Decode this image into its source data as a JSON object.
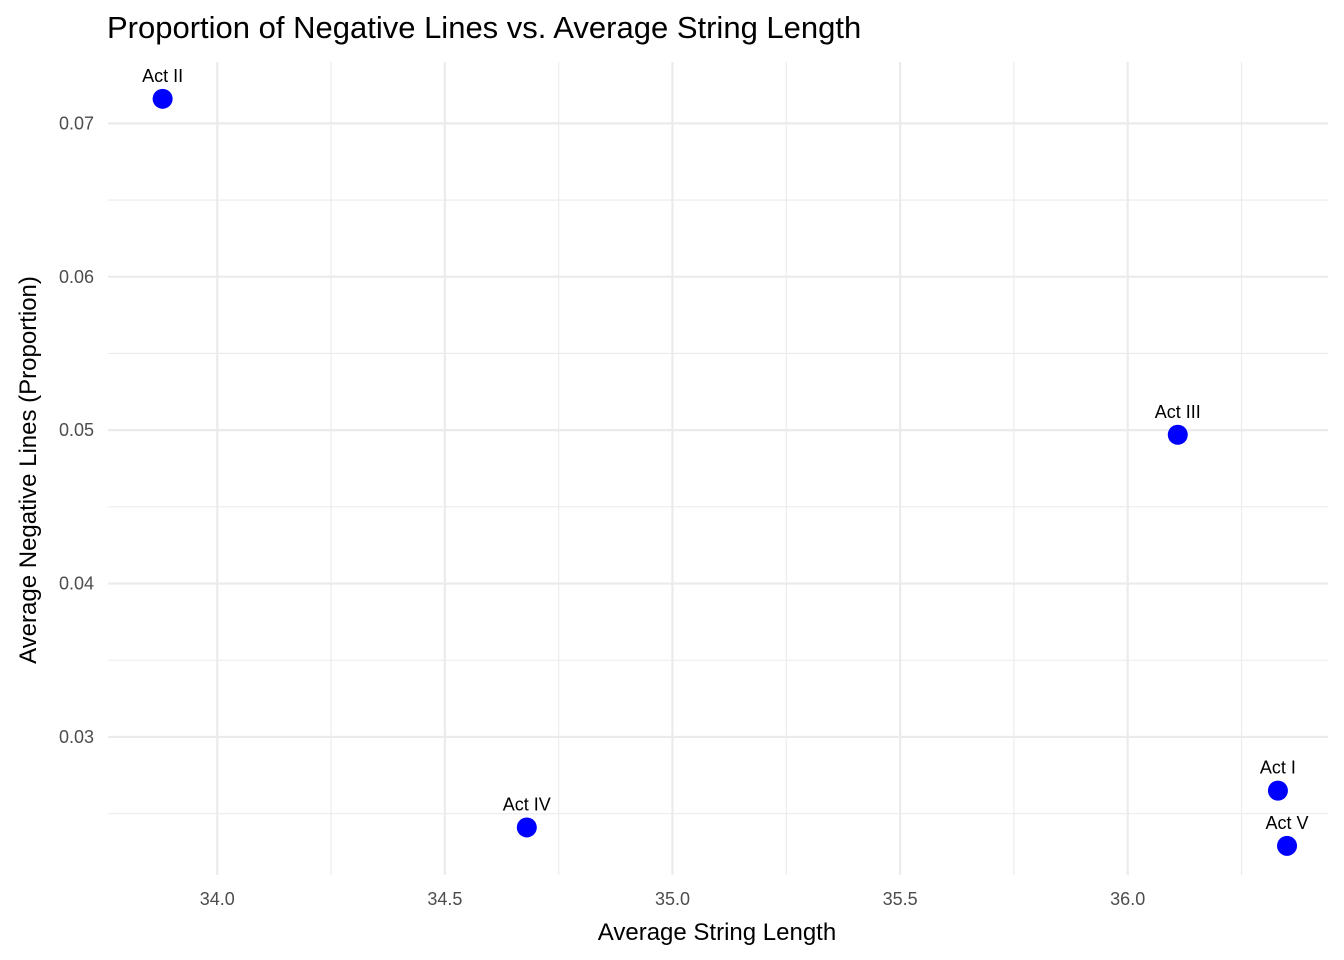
{
  "chart_data": {
    "type": "scatter",
    "title": "Proportion of Negative Lines vs. Average String Length",
    "xlabel": "Average String Length",
    "ylabel": "Average Negative Lines (Proportion)",
    "xlim": [
      33.76,
      36.44
    ],
    "ylim": [
      0.021,
      0.074
    ],
    "x_ticks": [
      34.0,
      34.5,
      35.0,
      35.5,
      36.0
    ],
    "x_tick_labels": [
      "34.0",
      "34.5",
      "35.0",
      "35.5",
      "36.0"
    ],
    "x_minor_ticks": [
      34.25,
      34.75,
      35.25,
      35.75,
      36.25
    ],
    "y_ticks": [
      0.03,
      0.04,
      0.05,
      0.06,
      0.07
    ],
    "y_tick_labels": [
      "0.03",
      "0.04",
      "0.05",
      "0.06",
      "0.07"
    ],
    "y_minor_ticks": [
      0.025,
      0.035,
      0.045,
      0.055,
      0.065
    ],
    "grid": true,
    "point_color": "#0000ff",
    "points": [
      {
        "label": "Act I",
        "x": 36.33,
        "y": 0.0265
      },
      {
        "label": "Act II",
        "x": 33.88,
        "y": 0.0716
      },
      {
        "label": "Act III",
        "x": 36.11,
        "y": 0.0497
      },
      {
        "label": "Act IV",
        "x": 34.68,
        "y": 0.0241
      },
      {
        "label": "Act V",
        "x": 36.35,
        "y": 0.0229
      }
    ]
  }
}
